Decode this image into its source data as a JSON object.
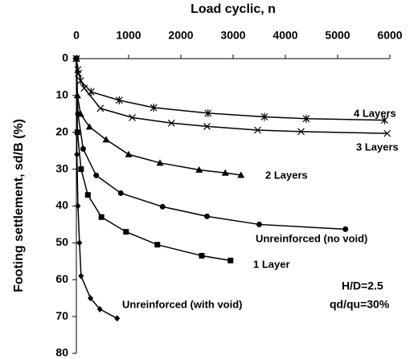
{
  "chart_data": {
    "type": "line",
    "x_label": "Load cyclic, n",
    "y_label": "Footing settlement, sd/B (%)",
    "xlim": [
      0,
      6000
    ],
    "xticks": [
      0,
      1000,
      2000,
      3000,
      4000,
      5000,
      6000
    ],
    "ylim": [
      0,
      80
    ],
    "yticks": [
      0,
      10,
      20,
      30,
      40,
      50,
      60,
      70,
      80
    ],
    "y_inverted": true,
    "x_axis_top": true,
    "series": [
      {
        "name": "4 Layers",
        "color": "#000000",
        "marker": "asterisk",
        "x": [
          0,
          30,
          80,
          280,
          820,
          1480,
          2520,
          3600,
          4400,
          5900
        ],
        "values": [
          0,
          3,
          6,
          9,
          11.3,
          13.3,
          14.8,
          15.8,
          16.3,
          16.7
        ]
      },
      {
        "name": "3 Layers",
        "color": "#000000",
        "marker": "x",
        "x": [
          0,
          40,
          150,
          460,
          1070,
          1820,
          2500,
          3470,
          4300,
          5950
        ],
        "values": [
          0,
          4,
          8,
          13.5,
          16,
          17.5,
          18.4,
          19.4,
          19.8,
          20.3
        ]
      },
      {
        "name": "2 Layers",
        "color": "#000000",
        "marker": "triangle",
        "x": [
          0,
          20,
          80,
          250,
          570,
          1000,
          1600,
          2350,
          2850,
          3150
        ],
        "values": [
          0,
          10,
          15,
          18.5,
          22,
          26,
          28.3,
          30.2,
          31,
          31.6
        ]
      },
      {
        "name": "Unreinforced (no void)",
        "color": "#000000",
        "marker": "circle",
        "x": [
          0,
          30,
          130,
          380,
          850,
          1650,
          2500,
          3500,
          5150
        ],
        "values": [
          0,
          15,
          24.5,
          31.7,
          36.5,
          40.2,
          42.8,
          45,
          46.3
        ]
      },
      {
        "name": "1 Layer",
        "color": "#000000",
        "marker": "square",
        "x": [
          0,
          20,
          90,
          220,
          480,
          950,
          1550,
          2400,
          2950
        ],
        "values": [
          0,
          20,
          30,
          37,
          43,
          47,
          50.5,
          53.5,
          54.8
        ]
      },
      {
        "name": "Unreinforced (with void)",
        "color": "#000000",
        "marker": "diamond",
        "x": [
          0,
          10,
          30,
          60,
          90,
          270,
          450,
          780
        ],
        "values": [
          0,
          26,
          40,
          50,
          59,
          65,
          68,
          70.5
        ]
      }
    ],
    "annotations": [
      "H/D=2.5",
      "qd/qu=30%"
    ]
  }
}
